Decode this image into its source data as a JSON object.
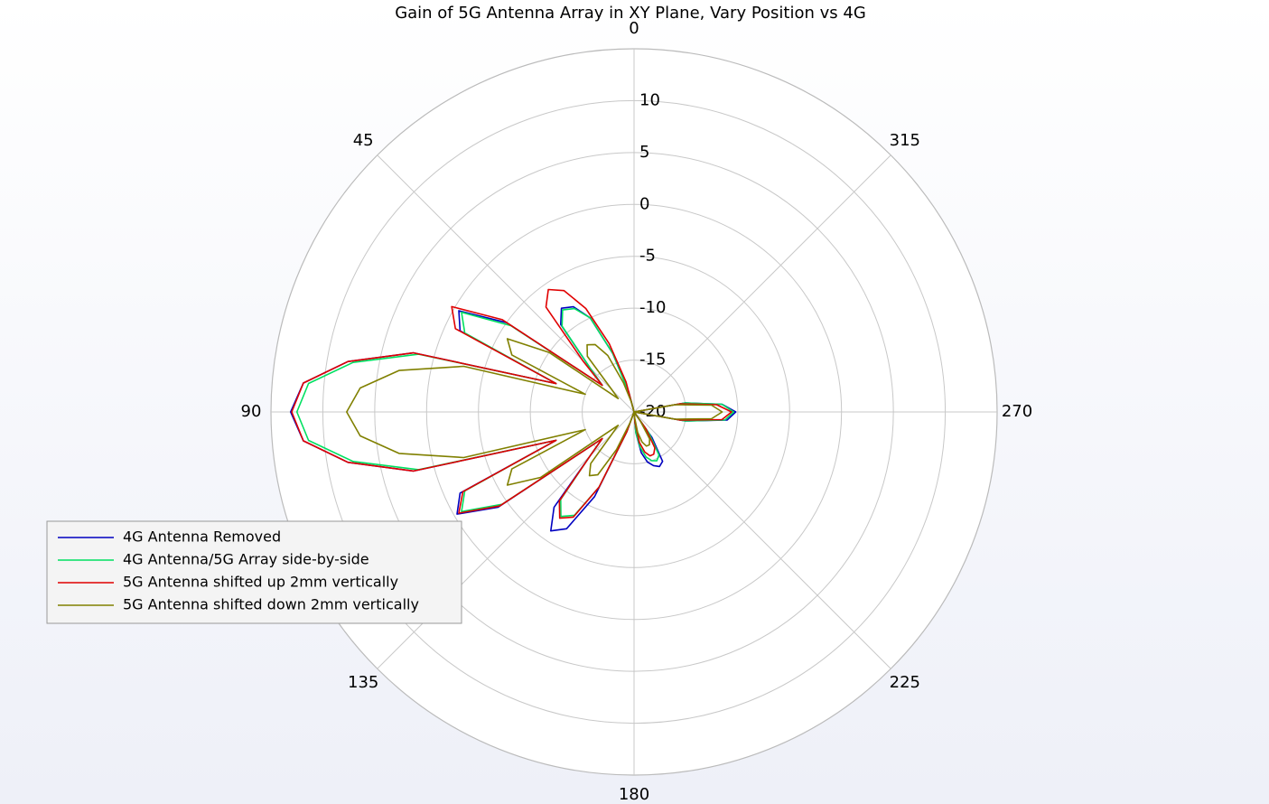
{
  "chart_data": {
    "type": "polar",
    "title": "Gain of 5G Antenna Array in XY Plane, Vary Position vs 4G",
    "x": [
      0,
      5,
      10,
      15,
      20,
      25,
      30,
      35,
      40,
      45,
      50,
      55,
      60,
      65,
      70,
      75,
      80,
      85,
      90,
      95,
      100,
      105,
      110,
      115,
      120,
      125,
      130,
      135,
      140,
      145,
      150,
      155,
      160,
      165,
      170,
      175,
      180,
      185,
      190,
      195,
      200,
      205,
      210,
      215,
      220,
      225,
      230,
      235,
      240,
      245,
      250,
      255,
      260,
      265,
      270,
      275,
      280,
      285,
      290,
      295,
      300,
      305,
      310,
      315,
      320,
      325,
      330,
      335,
      340,
      345,
      350,
      355
    ],
    "series": [
      {
        "name": "4G Antenna Removed",
        "color": "#0000c0",
        "values": [
          -20,
          -20,
          -20,
          -18,
          -14,
          -10,
          -8.3,
          -7.8,
          -9,
          -14,
          -16,
          -5,
          -0.5,
          -1.5,
          -12,
          2,
          8,
          12,
          13.1,
          12,
          8,
          2,
          -12,
          -1.5,
          -0.3,
          -4,
          -16,
          -14,
          -8,
          -6,
          -7,
          -11,
          -18,
          -20,
          -20,
          -20,
          -20,
          -18,
          -16,
          -15,
          -14.5,
          -14.2,
          -14.5,
          -17,
          -20,
          -20,
          -20,
          -20,
          -20,
          -20,
          -20,
          -20,
          -15,
          -11,
          -10.2,
          -11.5,
          -15,
          -20,
          -20,
          -20,
          -20,
          -20,
          -20,
          -20,
          -20,
          -20,
          -20,
          -20,
          -20,
          -20,
          -20,
          -20
        ]
      },
      {
        "name": "4G Antenna/5G Array side-by-side",
        "color": "#00e060",
        "values": [
          -20,
          -20,
          -20,
          -18,
          -14,
          -10,
          -8.5,
          -8,
          -9.2,
          -14,
          -16,
          -5.5,
          -0.8,
          -2,
          -12,
          1.5,
          7.5,
          11.5,
          12.5,
          11.5,
          7.5,
          1.5,
          -12,
          -2,
          -0.8,
          -4.5,
          -16,
          -14,
          -9,
          -7.7,
          -8.5,
          -12,
          -18,
          -20,
          -20,
          -20,
          -20,
          -18,
          -16.5,
          -15.5,
          -15,
          -14.8,
          -15.2,
          -17.5,
          -20,
          -20,
          -20,
          -20,
          -20,
          -20,
          -20,
          -20,
          -15,
          -11.2,
          -10.4,
          -11.5,
          -15,
          -20,
          -20,
          -20,
          -20,
          -20,
          -20,
          -20,
          -20,
          -20,
          -20,
          -20,
          -20,
          -20,
          -20,
          -20
        ]
      },
      {
        "name": "5G Antenna shifted up 2mm vertically",
        "color": "#e00000",
        "values": [
          -20,
          -20,
          -20,
          -17,
          -13,
          -9,
          -6.5,
          -5.6,
          -6.8,
          -13,
          -16,
          -4.5,
          0.3,
          -1,
          -12,
          2,
          8,
          12,
          13,
          12,
          8,
          2,
          -12,
          -1.8,
          -0.5,
          -4.2,
          -16,
          -14,
          -8.8,
          -7.5,
          -8.3,
          -12,
          -18,
          -20,
          -20,
          -20,
          -20,
          -19,
          -17,
          -16,
          -15.5,
          -15.5,
          -16,
          -18,
          -20,
          -20,
          -20,
          -20,
          -20,
          -20,
          -20,
          -20,
          -15.5,
          -11.5,
          -10.6,
          -12,
          -15.5,
          -20,
          -20,
          -20,
          -20,
          -20,
          -20,
          -20,
          -20,
          -20,
          -20,
          -20,
          -20,
          -20,
          -20,
          -20
        ]
      },
      {
        "name": "5G Antenna shifted down 2mm vertically",
        "color": "#808000",
        "values": [
          -20,
          -20,
          -20,
          -19,
          -17,
          -14,
          -12.5,
          -12.1,
          -13,
          -17,
          -18,
          -10,
          -5.9,
          -7,
          -15,
          -3,
          3,
          6.5,
          7.7,
          6.5,
          3,
          -3,
          -15,
          -7,
          -5.9,
          -9,
          -18,
          -17,
          -13.5,
          -12.5,
          -13,
          -16,
          -19,
          -20,
          -20,
          -20,
          -20,
          -19.5,
          -18,
          -17,
          -16.5,
          -16.5,
          -17,
          -19,
          -20,
          -20,
          -20,
          -20,
          -20,
          -20,
          -20,
          -20,
          -16,
          -12.5,
          -11.5,
          -12.5,
          -16,
          -20,
          -20,
          -20,
          -20,
          -20,
          -20,
          -20,
          -20,
          -20,
          -20,
          -20,
          -20,
          -20,
          -20,
          -20
        ]
      }
    ],
    "rlim": [
      -20,
      15
    ],
    "rticks": [
      -20,
      -15,
      -10,
      -5,
      0,
      5,
      10
    ],
    "thetaticks": [
      0,
      45,
      90,
      135,
      180,
      225,
      270,
      315
    ],
    "grid": true,
    "legend": "lower left"
  }
}
